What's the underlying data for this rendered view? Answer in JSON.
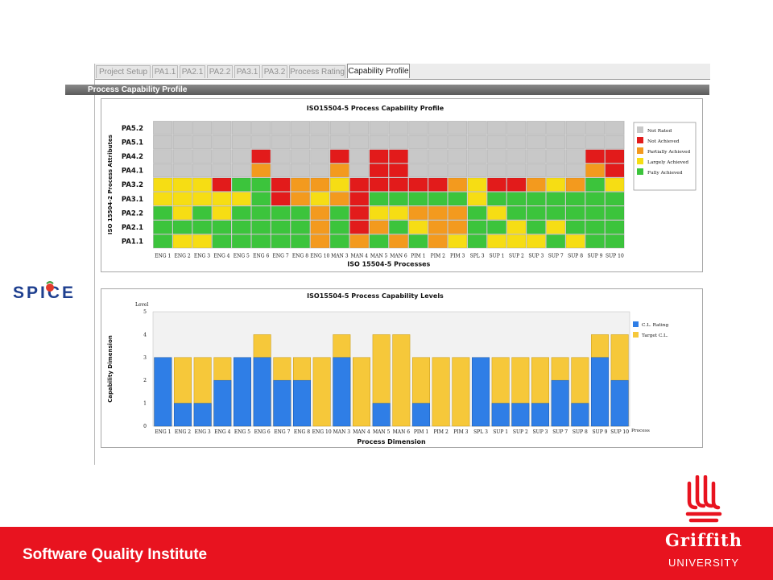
{
  "tabs": [
    {
      "label": "Project Setup",
      "active": false
    },
    {
      "label": "PA1.1",
      "active": false
    },
    {
      "label": "PA2.1",
      "active": false
    },
    {
      "label": "PA2.2",
      "active": false
    },
    {
      "label": "PA3.1",
      "active": false
    },
    {
      "label": "PA3.2",
      "active": false
    },
    {
      "label": "Process Rating",
      "active": false
    },
    {
      "label": "Capability Profile",
      "active": true
    }
  ],
  "section_title": "Process Capability Profile",
  "logo_text": "SPICE",
  "footer": {
    "institute": "Software Quality Institute",
    "university_name": "Griffith",
    "university_sub": "UNIVERSITY"
  },
  "colors": {
    "not_rated": "#c8c8c8",
    "not_achieved": "#e21b1b",
    "partially_achieved": "#f39a1e",
    "largely_achieved": "#f6dd14",
    "fully_achieved": "#3cc43c",
    "cl_rating": "#2f7ee6",
    "target_cl": "#f6c83a",
    "brand_red": "#e8131f"
  },
  "chart_data": [
    {
      "type": "heatmap",
      "title": "ISO15504-5 Process Capability Profile",
      "xlabel": "ISO 15504-5 Processes",
      "ylabel": "ISO 15504-2 Process Attributes",
      "processes": [
        "ENG 1",
        "ENG 2",
        "ENG 3",
        "ENG 4",
        "ENG 5",
        "ENG 6",
        "ENG 7",
        "ENG 8",
        "ENG 10",
        "MAN 3",
        "MAN 4",
        "MAN 5",
        "MAN 6",
        "PIM 1",
        "PIM 2",
        "PIM 3",
        "SPL 3",
        "SUP 1",
        "SUP 2",
        "SUP 3",
        "SUP 7",
        "SUP 8",
        "SUP 9",
        "SUP 10"
      ],
      "attributes": [
        "PA5.2",
        "PA5.1",
        "PA4.2",
        "PA4.1",
        "PA3.2",
        "PA3.1",
        "PA2.2",
        "PA2.1",
        "PA1.1"
      ],
      "legend": [
        "Not Rated",
        "Not Achieved",
        "Partially Achieved",
        "Largely Achieved",
        "Fully Achieved"
      ],
      "legend_keys": [
        "N/R",
        "N",
        "P",
        "L",
        "F"
      ],
      "grid": [
        [
          "N/R",
          "N/R",
          "N/R",
          "N/R",
          "N/R",
          "N/R",
          "N/R",
          "N/R",
          "N/R",
          "N/R",
          "N/R",
          "N/R",
          "N/R",
          "N/R",
          "N/R",
          "N/R",
          "N/R",
          "N/R",
          "N/R",
          "N/R",
          "N/R",
          "N/R",
          "N/R",
          "N/R"
        ],
        [
          "N/R",
          "N/R",
          "N/R",
          "N/R",
          "N/R",
          "N/R",
          "N/R",
          "N/R",
          "N/R",
          "N/R",
          "N/R",
          "N/R",
          "N/R",
          "N/R",
          "N/R",
          "N/R",
          "N/R",
          "N/R",
          "N/R",
          "N/R",
          "N/R",
          "N/R",
          "N/R",
          "N/R"
        ],
        [
          "N/R",
          "N/R",
          "N/R",
          "N/R",
          "N/R",
          "N",
          "N/R",
          "N/R",
          "N/R",
          "N",
          "N/R",
          "N",
          "N",
          "N/R",
          "N/R",
          "N/R",
          "N/R",
          "N/R",
          "N/R",
          "N/R",
          "N/R",
          "N/R",
          "N",
          "N"
        ],
        [
          "N/R",
          "N/R",
          "N/R",
          "N/R",
          "N/R",
          "P",
          "N/R",
          "N/R",
          "N/R",
          "P",
          "N/R",
          "N",
          "N",
          "N/R",
          "N/R",
          "N/R",
          "N/R",
          "N/R",
          "N/R",
          "N/R",
          "N/R",
          "N/R",
          "P",
          "N"
        ],
        [
          "L",
          "L",
          "L",
          "N",
          "F",
          "F",
          "N",
          "P",
          "P",
          "L",
          "N",
          "N",
          "N",
          "N",
          "N",
          "P",
          "L",
          "N",
          "N",
          "P",
          "L",
          "P",
          "F",
          "L"
        ],
        [
          "L",
          "L",
          "L",
          "L",
          "L",
          "F",
          "N",
          "P",
          "L",
          "P",
          "N",
          "F",
          "F",
          "F",
          "F",
          "F",
          "L",
          "F",
          "F",
          "F",
          "F",
          "F",
          "F",
          "F"
        ],
        [
          "F",
          "L",
          "F",
          "L",
          "F",
          "F",
          "F",
          "F",
          "P",
          "F",
          "N",
          "L",
          "L",
          "P",
          "P",
          "P",
          "F",
          "L",
          "F",
          "F",
          "F",
          "F",
          "F",
          "F"
        ],
        [
          "F",
          "F",
          "F",
          "F",
          "F",
          "F",
          "F",
          "F",
          "P",
          "F",
          "N",
          "P",
          "F",
          "L",
          "P",
          "P",
          "F",
          "F",
          "L",
          "F",
          "L",
          "F",
          "F",
          "F"
        ],
        [
          "F",
          "L",
          "L",
          "F",
          "F",
          "F",
          "F",
          "F",
          "P",
          "F",
          "P",
          "F",
          "P",
          "F",
          "P",
          "L",
          "F",
          "L",
          "L",
          "L",
          "F",
          "L",
          "F",
          "F"
        ]
      ]
    },
    {
      "type": "bar",
      "title": "ISO15504-5 Process Capability Levels",
      "xlabel": "Process Dimension",
      "ylabel": "Capability Dimension",
      "y_axis_title": "Level",
      "x_axis_end_label": "Process",
      "categories": [
        "ENG 1",
        "ENG 2",
        "ENG 3",
        "ENG 4",
        "ENG 5",
        "ENG 6",
        "ENG 7",
        "ENG 8",
        "ENG 10",
        "MAN 3",
        "MAN 4",
        "MAN 5",
        "MAN 6",
        "PIM 1",
        "PIM 2",
        "PIM 3",
        "SPL 3",
        "SUP 1",
        "SUP 2",
        "SUP 3",
        "SUP 7",
        "SUP 8",
        "SUP 9",
        "SUP 10"
      ],
      "series": [
        {
          "name": "C.L. Rating",
          "values": [
            3,
            1,
            1,
            2,
            3,
            3,
            2,
            2,
            0,
            3,
            0,
            1,
            0,
            1,
            0,
            0,
            3,
            1,
            1,
            1,
            2,
            1,
            3,
            2
          ]
        },
        {
          "name": "Target C.L.",
          "values": [
            3,
            3,
            3,
            3,
            3,
            4,
            3,
            3,
            3,
            4,
            3,
            4,
            4,
            3,
            3,
            3,
            3,
            3,
            3,
            3,
            3,
            3,
            4,
            4
          ]
        }
      ],
      "ylim": [
        0,
        5
      ],
      "yticks": [
        0,
        1,
        2,
        3,
        4,
        5
      ],
      "legend_position": "right"
    }
  ]
}
